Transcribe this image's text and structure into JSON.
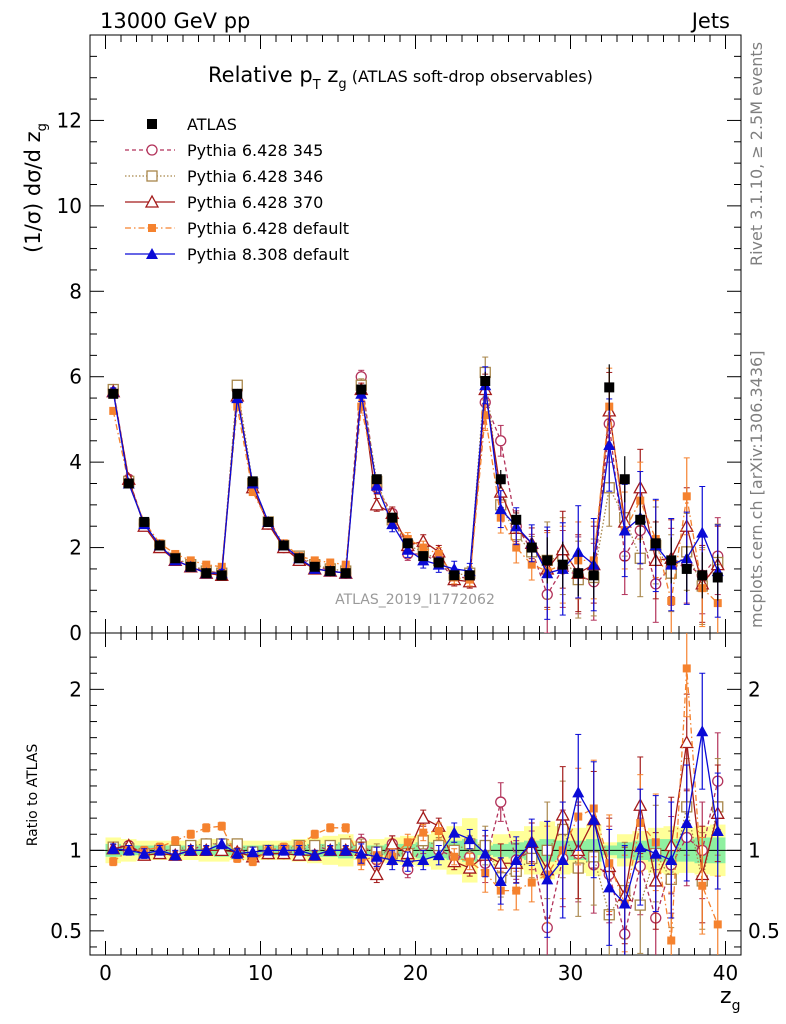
{
  "header": {
    "left": "13000 GeV pp",
    "right": "Jets"
  },
  "title": {
    "main": "Relative p",
    "sub_T": "T",
    "after": " z",
    "sub_g": "g",
    "paren": " (ATLAS soft-drop observables)"
  },
  "ylabel_top": {
    "pre": "(1/σ) dσ/d z",
    "sub": "g"
  },
  "ylabel_bottom": "Ratio to ATLAS",
  "xlabel": {
    "pre": "z",
    "sub": "g"
  },
  "side_text": {
    "rivet": "Rivet 3.1.10, ≥ 2.5M events",
    "mcplots": "mcplots.cern.ch [arXiv:1306.3436]"
  },
  "watermark": "ATLAS_2019_I1772062",
  "colors": {
    "atlas": "#000000",
    "p345": "#b2325a",
    "p346": "#a8864a",
    "p370": "#a31a1a",
    "p6def": "#f5822e",
    "p8def": "#0a0ad6",
    "band_green": "#8ff0a0",
    "band_yellow": "#ffff99"
  },
  "chart_data": {
    "type": "scatter",
    "title": "Relative pT zg (ATLAS soft-drop observables)",
    "xlabel": "zg",
    "ylabel": "(1/σ) dσ/d zg",
    "ratio_ylabel": "Ratio to ATLAS",
    "xlim": [
      -1,
      41
    ],
    "ylim": [
      0,
      14
    ],
    "ratio_ylim": [
      0.35,
      2.35
    ],
    "xticks": [
      0,
      10,
      20,
      30,
      40
    ],
    "yticks": [
      0,
      2,
      4,
      6,
      8,
      10,
      12
    ],
    "ratio_yticks": [
      0.5,
      1,
      2
    ],
    "x": [
      0.5,
      1.5,
      2.5,
      3.5,
      4.5,
      5.5,
      6.5,
      7.5,
      8.5,
      9.5,
      10.5,
      11.5,
      12.5,
      13.5,
      14.5,
      15.5,
      16.5,
      17.5,
      18.5,
      19.5,
      20.5,
      21.5,
      22.5,
      23.5,
      24.5,
      25.5,
      26.5,
      27.5,
      28.5,
      29.5,
      30.5,
      31.5,
      32.5,
      33.5,
      34.5,
      35.5,
      36.5,
      37.5,
      38.5,
      39.5
    ],
    "series": [
      {
        "name": "ATLAS",
        "key": "atlas",
        "values": [
          5.6,
          3.5,
          2.6,
          2.05,
          1.75,
          1.55,
          1.4,
          1.35,
          5.6,
          3.55,
          2.6,
          2.05,
          1.75,
          1.55,
          1.45,
          1.4,
          5.7,
          3.6,
          2.7,
          2.1,
          1.8,
          1.65,
          1.35,
          1.35,
          5.9,
          3.6,
          2.65,
          2.0,
          1.7,
          1.6,
          1.4,
          1.35,
          5.75,
          3.6,
          2.65,
          2.1,
          1.7,
          1.5,
          1.35,
          1.3
        ],
        "ratio": [
          1,
          1,
          1,
          1,
          1,
          1,
          1,
          1,
          1,
          1,
          1,
          1,
          1,
          1,
          1,
          1,
          1,
          1,
          1,
          1,
          1,
          1,
          1,
          1,
          1,
          1,
          1,
          1,
          1,
          1,
          1,
          1,
          1,
          1,
          1,
          1,
          1,
          1,
          1,
          1
        ],
        "band_green": [
          0.04,
          0.03,
          0.03,
          0.03,
          0.03,
          0.03,
          0.03,
          0.04,
          0.03,
          0.03,
          0.03,
          0.03,
          0.03,
          0.04,
          0.04,
          0.05,
          0.03,
          0.03,
          0.04,
          0.04,
          0.05,
          0.05,
          0.06,
          0.07,
          0.03,
          0.04,
          0.05,
          0.06,
          0.07,
          0.06,
          0.06,
          0.07,
          0.03,
          0.05,
          0.06,
          0.07,
          0.07,
          0.07,
          0.08,
          0.08
        ],
        "band_yellow": [
          0.08,
          0.07,
          0.06,
          0.06,
          0.06,
          0.06,
          0.07,
          0.07,
          0.06,
          0.06,
          0.06,
          0.06,
          0.07,
          0.08,
          0.09,
          0.1,
          0.06,
          0.07,
          0.08,
          0.09,
          0.1,
          0.12,
          0.15,
          0.2,
          0.05,
          0.1,
          0.12,
          0.15,
          0.18,
          0.15,
          0.14,
          0.16,
          0.05,
          0.1,
          0.12,
          0.14,
          0.15,
          0.14,
          0.15,
          0.16
        ]
      },
      {
        "name": "Pythia 6.428 345",
        "key": "p345",
        "values": [
          5.7,
          3.6,
          2.55,
          2.05,
          1.75,
          1.55,
          1.45,
          1.4,
          5.7,
          3.4,
          2.55,
          2.0,
          1.75,
          1.6,
          1.45,
          1.4,
          6.0,
          3.4,
          2.8,
          1.85,
          1.85,
          1.65,
          1.3,
          1.3,
          5.4,
          4.5,
          2.5,
          1.95,
          0.9,
          1.5,
          1.35,
          1.2,
          4.9,
          1.8,
          2.4,
          1.15,
          1.55,
          1.6,
          1.35,
          1.8
        ],
        "ratio": [
          1.02,
          1.03,
          0.98,
          1.0,
          1.0,
          1.0,
          1.04,
          1.04,
          1.02,
          0.96,
          0.98,
          0.98,
          1.0,
          1.03,
          1.0,
          1.0,
          1.05,
          0.94,
          1.04,
          0.88,
          1.03,
          1.0,
          0.96,
          0.96,
          0.92,
          1.3,
          0.94,
          1.0,
          0.52,
          0.95,
          0.98,
          0.91,
          0.85,
          0.48,
          0.9,
          0.58,
          0.91,
          1.08,
          1.0,
          1.43
        ]
      },
      {
        "name": "Pythia 6.428 346",
        "key": "p346",
        "values": [
          5.7,
          3.55,
          2.55,
          2.05,
          1.75,
          1.6,
          1.45,
          1.4,
          5.8,
          3.5,
          2.6,
          2.05,
          1.8,
          1.6,
          1.5,
          1.45,
          5.8,
          3.55,
          2.65,
          2.05,
          1.9,
          1.7,
          1.35,
          1.4,
          6.1,
          3.0,
          2.3,
          1.9,
          1.7,
          1.8,
          1.25,
          1.3,
          3.4,
          2.7,
          1.75,
          2.05,
          1.4,
          1.9,
          1.1,
          1.65
        ],
        "ratio": [
          1.02,
          1.01,
          0.98,
          1.0,
          1.0,
          1.03,
          1.04,
          1.04,
          1.04,
          0.99,
          1.0,
          1.0,
          1.03,
          1.03,
          1.03,
          1.04,
          1.02,
          0.99,
          0.98,
          0.98,
          1.06,
          1.03,
          1.0,
          1.04,
          1.03,
          0.83,
          0.87,
          0.95,
          1.0,
          1.13,
          0.89,
          0.96,
          0.6,
          0.75,
          0.66,
          0.98,
          0.82,
          1.27,
          0.81,
          1.27
        ]
      },
      {
        "name": "Pythia 6.428 370",
        "key": "p370",
        "values": [
          5.65,
          3.6,
          2.5,
          2.0,
          1.7,
          1.55,
          1.4,
          1.35,
          5.55,
          3.4,
          2.55,
          2.0,
          1.7,
          1.5,
          1.45,
          1.4,
          5.7,
          3.0,
          2.8,
          2.05,
          2.15,
          1.9,
          1.25,
          1.2,
          5.7,
          3.3,
          2.45,
          2.1,
          1.5,
          1.95,
          1.4,
          1.6,
          5.2,
          2.6,
          3.4,
          1.7,
          1.75,
          2.5,
          1.15,
          1.6
        ],
        "ratio": [
          1.01,
          1.03,
          0.97,
          0.98,
          0.97,
          1.0,
          1.0,
          1.0,
          0.99,
          0.96,
          0.98,
          0.98,
          0.97,
          0.97,
          1.0,
          1.0,
          1.0,
          0.85,
          1.04,
          0.98,
          1.2,
          1.15,
          0.93,
          0.89,
          0.97,
          0.92,
          0.92,
          1.05,
          0.88,
          1.22,
          1.0,
          1.19,
          0.9,
          0.72,
          1.28,
          0.81,
          1.03,
          1.67,
          0.85,
          1.23
        ]
      },
      {
        "name": "Pythia 6.428 default",
        "key": "p6def",
        "values": [
          5.2,
          3.5,
          2.6,
          2.1,
          1.85,
          1.7,
          1.6,
          1.55,
          5.3,
          3.3,
          2.6,
          2.1,
          1.8,
          1.7,
          1.65,
          1.6,
          5.3,
          3.5,
          2.6,
          2.2,
          2.0,
          1.85,
          1.3,
          1.25,
          5.1,
          2.7,
          2.0,
          1.6,
          1.45,
          1.6,
          1.7,
          1.7,
          5.3,
          2.4,
          3.1,
          2.2,
          0.75,
          3.2,
          1.05,
          0.7
        ],
        "ratio": [
          0.93,
          1.0,
          1.0,
          1.02,
          1.06,
          1.1,
          1.14,
          1.15,
          0.95,
          0.93,
          1.0,
          1.02,
          1.03,
          1.1,
          1.14,
          1.14,
          0.93,
          0.97,
          0.96,
          1.05,
          1.11,
          1.12,
          0.96,
          0.93,
          0.86,
          0.75,
          0.75,
          0.8,
          0.85,
          1.0,
          1.21,
          1.26,
          0.92,
          0.67,
          1.17,
          1.05,
          0.44,
          2.13,
          0.78,
          0.54
        ]
      },
      {
        "name": "Pythia 8.308 default",
        "key": "p8def",
        "values": [
          5.65,
          3.5,
          2.55,
          2.05,
          1.7,
          1.55,
          1.4,
          1.4,
          5.5,
          3.5,
          2.6,
          2.05,
          1.75,
          1.5,
          1.45,
          1.4,
          5.6,
          3.45,
          2.55,
          1.95,
          1.7,
          1.6,
          1.5,
          1.45,
          5.8,
          2.9,
          2.5,
          2.1,
          1.4,
          1.5,
          1.9,
          1.6,
          4.4,
          2.4,
          2.7,
          2.05,
          1.6,
          1.75,
          2.35,
          1.45
        ],
        "ratio": [
          1.01,
          1.0,
          0.98,
          1.0,
          0.97,
          1.0,
          1.0,
          1.04,
          0.98,
          0.99,
          1.0,
          1.0,
          1.0,
          0.97,
          1.0,
          1.0,
          0.98,
          0.96,
          0.94,
          0.93,
          0.94,
          0.97,
          1.11,
          1.07,
          0.98,
          0.81,
          0.94,
          1.05,
          0.82,
          0.94,
          1.36,
          1.19,
          0.77,
          0.67,
          1.02,
          0.98,
          0.94,
          1.17,
          1.74,
          1.12
        ]
      }
    ],
    "legend_placement": "top-left"
  }
}
